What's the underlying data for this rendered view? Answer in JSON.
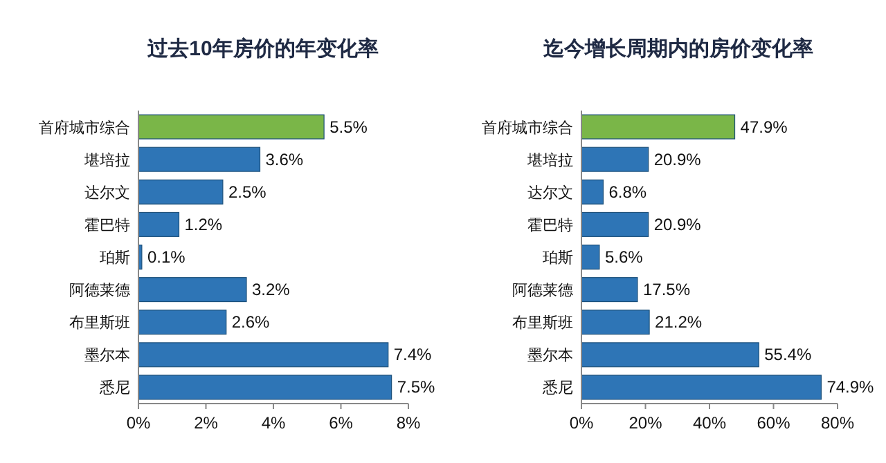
{
  "chart_data": [
    {
      "type": "bar",
      "orientation": "horizontal",
      "title": "过去10年房价的年变化率",
      "categories": [
        "首府城市综合",
        "堪培拉",
        "达尔文",
        "霍巴特",
        "珀斯",
        "阿德莱德",
        "布里斯班",
        "墨尔本",
        "悉尼"
      ],
      "values": [
        5.5,
        3.6,
        2.5,
        1.2,
        0.1,
        3.2,
        2.6,
        7.4,
        7.5
      ],
      "value_labels": [
        "5.5%",
        "3.6%",
        "2.5%",
        "1.2%",
        "0.1%",
        "3.2%",
        "2.6%",
        "7.4%",
        "7.5%"
      ],
      "colors": [
        "#7ab648",
        "#2e75b6",
        "#2e75b6",
        "#2e75b6",
        "#2e75b6",
        "#2e75b6",
        "#2e75b6",
        "#2e75b6",
        "#2e75b6"
      ],
      "xlim": [
        0,
        8
      ],
      "xticks": [
        {
          "value": 0,
          "label": "0%"
        },
        {
          "value": 2,
          "label": "2%"
        },
        {
          "value": 4,
          "label": "4%"
        },
        {
          "value": 6,
          "label": "6%"
        },
        {
          "value": 8,
          "label": "8%"
        }
      ]
    },
    {
      "type": "bar",
      "orientation": "horizontal",
      "title": "迄今增长周期内的房价变化率",
      "categories": [
        "首府城市综合",
        "堪培拉",
        "达尔文",
        "霍巴特",
        "珀斯",
        "阿德莱德",
        "布里斯班",
        "墨尔本",
        "悉尼"
      ],
      "values": [
        47.9,
        20.9,
        6.8,
        20.9,
        5.6,
        17.5,
        21.2,
        55.4,
        74.9
      ],
      "value_labels": [
        "47.9%",
        "20.9%",
        "6.8%",
        "20.9%",
        "5.6%",
        "17.5%",
        "21.2%",
        "55.4%",
        "74.9%"
      ],
      "colors": [
        "#7ab648",
        "#2e75b6",
        "#2e75b6",
        "#2e75b6",
        "#2e75b6",
        "#2e75b6",
        "#2e75b6",
        "#2e75b6",
        "#2e75b6"
      ],
      "xlim": [
        0,
        80
      ],
      "xticks": [
        {
          "value": 0,
          "label": "0%"
        },
        {
          "value": 20,
          "label": "20%"
        },
        {
          "value": 40,
          "label": "40%"
        },
        {
          "value": 60,
          "label": "60%"
        },
        {
          "value": 80,
          "label": "80%"
        }
      ]
    }
  ]
}
